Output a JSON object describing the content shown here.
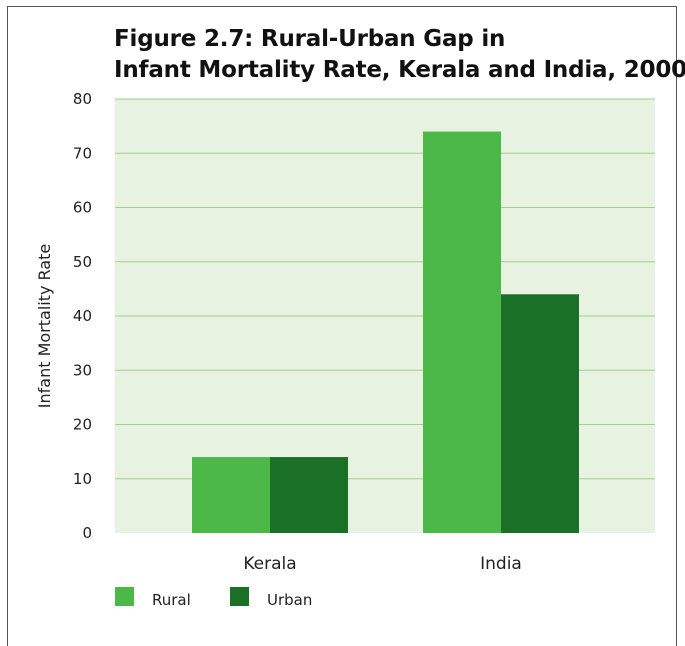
{
  "chart_data": {
    "type": "bar",
    "title_lines": [
      "Figure 2.7: Rural-Urban Gap in",
      "Infant Mortality Rate, Kerala and India, 2000"
    ],
    "xlabel": "",
    "ylabel": "Infant Mortality Rate",
    "ylim": [
      0,
      80
    ],
    "yticks": [
      0,
      10,
      20,
      30,
      40,
      50,
      60,
      70,
      80
    ],
    "grid": true,
    "legend_position": "bottom-left",
    "categories": [
      "Kerala",
      "India"
    ],
    "series": [
      {
        "name": "Rural",
        "values": [
          14,
          74
        ],
        "color": "#4cb848"
      },
      {
        "name": "Urban",
        "values": [
          14,
          44
        ],
        "color": "#1a7026"
      }
    ],
    "colors": {
      "plot_background": "#e7f3e0",
      "gridline": "#9fcf8e"
    }
  }
}
